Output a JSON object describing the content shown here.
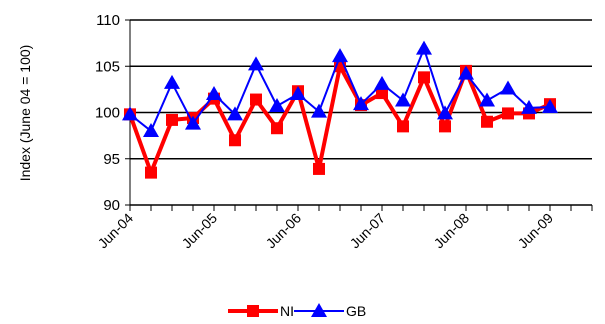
{
  "chart_data": {
    "type": "line",
    "xlabel": "",
    "ylabel": "Index (June 04 = 100)",
    "ylim": [
      90,
      110
    ],
    "yticks": [
      90,
      95,
      100,
      105,
      110
    ],
    "grid": "horizontal",
    "legend_position": "bottom",
    "x": [
      "Jun-04",
      "Sep-04",
      "Dec-04",
      "Mar-05",
      "Jun-05",
      "Sep-05",
      "Dec-05",
      "Mar-06",
      "Jun-06",
      "Sep-06",
      "Dec-06",
      "Mar-07",
      "Jun-07",
      "Sep-07",
      "Dec-07",
      "Mar-08",
      "Jun-08",
      "Sep-08",
      "Dec-08",
      "Mar-09",
      "Jun-09",
      "Sep-09"
    ],
    "x_tick_labels": [
      "Jun-04",
      "Jun-05",
      "Jun-06",
      "Jun-07",
      "Jun-08",
      "Jun-09"
    ],
    "series": [
      {
        "name": "NI",
        "color": "#ff0000",
        "marker": "square",
        "values": [
          99.8,
          93.5,
          99.2,
          99.4,
          101.5,
          97.0,
          101.4,
          98.3,
          102.3,
          93.9,
          105.0,
          100.8,
          102.1,
          98.5,
          103.8,
          98.5,
          104.5,
          99.0,
          99.9,
          99.9,
          100.9,
          null
        ]
      },
      {
        "name": "GB",
        "color": "#0000ff",
        "marker": "triangle",
        "values": [
          99.8,
          98.0,
          103.2,
          98.8,
          102.0,
          99.8,
          105.2,
          100.7,
          102.0,
          100.1,
          106.1,
          100.9,
          103.1,
          101.3,
          106.9,
          99.9,
          104.2,
          101.3,
          102.6,
          100.5,
          100.6,
          null
        ]
      }
    ]
  }
}
